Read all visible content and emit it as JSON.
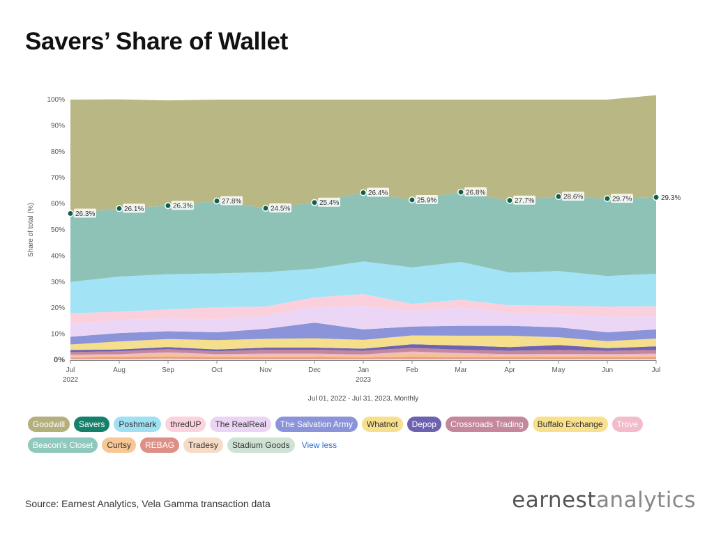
{
  "title": "Savers’ Share of Wallet",
  "source": "Source: Earnest Analytics, Vela Gamma transaction data",
  "logo": {
    "part1": "earnest",
    "part2": "analytics"
  },
  "legend_view_less": "View less",
  "chart_data": {
    "type": "area",
    "stacked": true,
    "ylabel": "Share of total (%)",
    "xlabel": "Jul 01, 2022 - Jul 31, 2023, Monthly",
    "ylim": [
      0,
      100
    ],
    "yticks": [
      "0%",
      "10%",
      "20%",
      "30%",
      "40%",
      "50%",
      "60%",
      "70%",
      "80%",
      "90%",
      "100%"
    ],
    "categories": [
      "Jul",
      "Aug",
      "Sep",
      "Oct",
      "Nov",
      "Dec",
      "Jan",
      "Feb",
      "Mar",
      "Apr",
      "May",
      "Jun",
      "Jul"
    ],
    "year_labels": {
      "0": "2022",
      "6": "2023"
    },
    "savers_labels": [
      "26.3%",
      "26.1%",
      "26.3%",
      "27.8%",
      "24.5%",
      "25.4%",
      "26.4%",
      "25.9%",
      "26.8%",
      "27.7%",
      "28.6%",
      "29.7%",
      "29.3%"
    ],
    "series": [
      {
        "name": "Tradesy",
        "color": "#f3d9c4",
        "values": [
          0.5,
          0.5,
          0.6,
          0.5,
          0.5,
          0.5,
          0.5,
          0.5,
          0.5,
          0.5,
          0.5,
          0.5,
          0.5
        ]
      },
      {
        "name": "REBAG",
        "color": "#e0998f",
        "values": [
          0.5,
          0.6,
          0.7,
          0.6,
          0.6,
          0.6,
          0.5,
          0.7,
          0.6,
          0.6,
          0.6,
          0.6,
          0.6
        ]
      },
      {
        "name": "Curtsy",
        "color": "#f6c28e",
        "values": [
          0.5,
          0.6,
          1.1,
          0.6,
          0.8,
          0.8,
          0.6,
          1.5,
          1.0,
          0.6,
          0.7,
          0.6,
          0.8
        ]
      },
      {
        "name": "Trove",
        "color": "#efb9c9",
        "values": [
          0.6,
          0.6,
          0.6,
          0.6,
          0.6,
          0.6,
          0.6,
          0.6,
          0.6,
          0.6,
          0.6,
          0.6,
          0.6
        ]
      },
      {
        "name": "Crossroads Trading",
        "color": "#c6879e",
        "values": [
          1.0,
          1.1,
          1.2,
          1.1,
          1.5,
          1.5,
          1.4,
          1.4,
          1.3,
          1.3,
          1.5,
          1.3,
          1.4
        ]
      },
      {
        "name": "Depop",
        "color": "#6e63b3",
        "values": [
          0.8,
          0.7,
          0.8,
          0.7,
          0.8,
          0.8,
          0.8,
          1.4,
          1.6,
          1.4,
          1.9,
          1.0,
          1.4
        ]
      },
      {
        "name": "Whatnot",
        "color": "#f6df8c",
        "values": [
          2.1,
          3.1,
          3.1,
          3.6,
          3.4,
          3.6,
          3.4,
          3.4,
          3.8,
          4.4,
          3.0,
          2.7,
          3.0
        ]
      },
      {
        "name": "The Salvation Army",
        "color": "#8b93d9",
        "values": [
          3.0,
          3.2,
          3.0,
          3.0,
          3.8,
          6.0,
          4.0,
          3.4,
          3.8,
          3.8,
          3.8,
          3.4,
          3.5
        ]
      },
      {
        "name": "The RealReal",
        "color": "#ecd6f6",
        "values": [
          5.0,
          5.0,
          5.0,
          5.0,
          5.0,
          6.0,
          9.0,
          6.0,
          7.0,
          5.0,
          5.0,
          6.0,
          5.0
        ]
      },
      {
        "name": "thredUP",
        "color": "#fbd0dd",
        "values": [
          4.0,
          3.2,
          3.4,
          4.6,
          3.6,
          3.7,
          4.6,
          2.7,
          3.0,
          2.9,
          3.3,
          3.9,
          3.9
        ]
      },
      {
        "name": "Poshmark",
        "color": "#a2e3f6",
        "values": [
          12.0,
          13.5,
          13.5,
          13.0,
          13.2,
          11.0,
          12.5,
          14.0,
          14.5,
          12.5,
          13.3,
          11.7,
          12.5
        ]
      },
      {
        "name": "Savers",
        "color": "#8fc2b7",
        "values": [
          26.3,
          26.1,
          26.3,
          27.8,
          24.5,
          25.4,
          26.4,
          25.9,
          26.8,
          27.7,
          28.6,
          29.7,
          29.3
        ]
      },
      {
        "name": "Goodwill",
        "color": "#b9b784",
        "values": [
          43.7,
          41.9,
          40.4,
          38.9,
          41.7,
          39.5,
          35.7,
          38.5,
          35.5,
          38.7,
          37.2,
          38.0,
          39.2
        ]
      }
    ]
  },
  "legend": [
    {
      "label": "Goodwill",
      "color": "#b3b07c",
      "light": false
    },
    {
      "label": "Savers",
      "color": "#17806a",
      "light": false
    },
    {
      "label": "Poshmark",
      "color": "#9fe0f3",
      "light": true
    },
    {
      "label": "thredUP",
      "color": "#fbd3de",
      "light": true
    },
    {
      "label": "The RealReal",
      "color": "#ead5f5",
      "light": true
    },
    {
      "label": "The Salvation Army",
      "color": "#8b94d9",
      "light": false
    },
    {
      "label": "Whatnot",
      "color": "#f6e08e",
      "light": true
    },
    {
      "label": "Depop",
      "color": "#6d62b1",
      "light": false
    },
    {
      "label": "Crossroads Trading",
      "color": "#c4879c",
      "light": false
    },
    {
      "label": "Buffalo Exchange",
      "color": "#f8e08c",
      "light": true
    },
    {
      "label": "Trove",
      "color": "#f2bccb",
      "light": false
    },
    {
      "label": "Beacon's Closet",
      "color": "#8fc8bc",
      "light": false
    },
    {
      "label": "Curtsy",
      "color": "#f7c896",
      "light": true
    },
    {
      "label": "REBAG",
      "color": "#de8f86",
      "light": false
    },
    {
      "label": "Tradesy",
      "color": "#f6dcc6",
      "light": true
    },
    {
      "label": "Stadium Goods",
      "color": "#cfe3d5",
      "light": true
    }
  ]
}
